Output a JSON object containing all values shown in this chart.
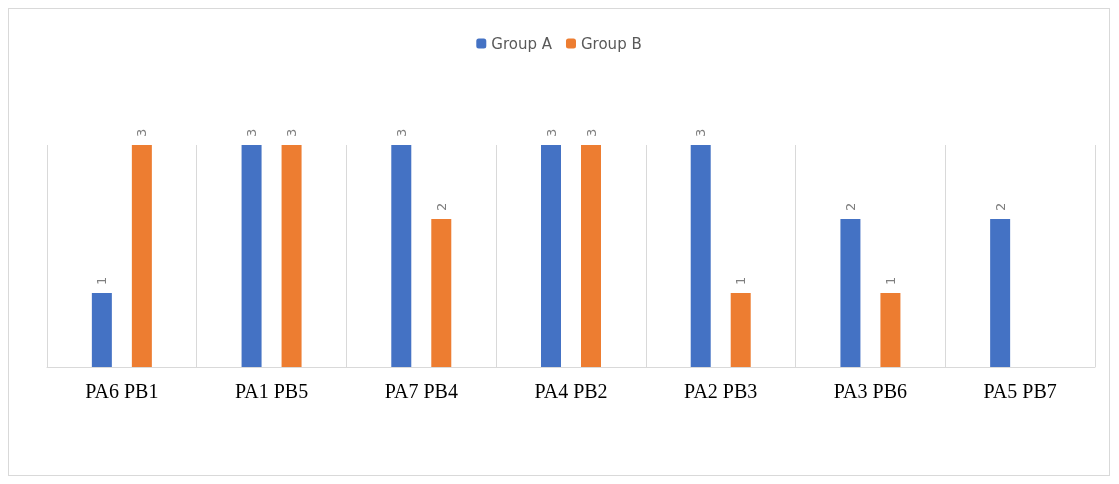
{
  "chart_data": {
    "type": "bar",
    "categories": [
      "PA6 PB1",
      "PA1 PB5",
      "PA7 PB4",
      "PA4 PB2",
      "PA2 PB3",
      "PA3 PB6",
      "PA5 PB7"
    ],
    "series": [
      {
        "name": "Group A",
        "color": "#4472c4",
        "values": [
          1,
          3,
          3,
          3,
          3,
          2,
          2
        ]
      },
      {
        "name": "Group B",
        "color": "#ed7d31",
        "values": [
          3,
          3,
          2,
          3,
          1,
          1,
          null
        ]
      }
    ],
    "data_labels": true,
    "legend": "top",
    "grid": "x"
  }
}
